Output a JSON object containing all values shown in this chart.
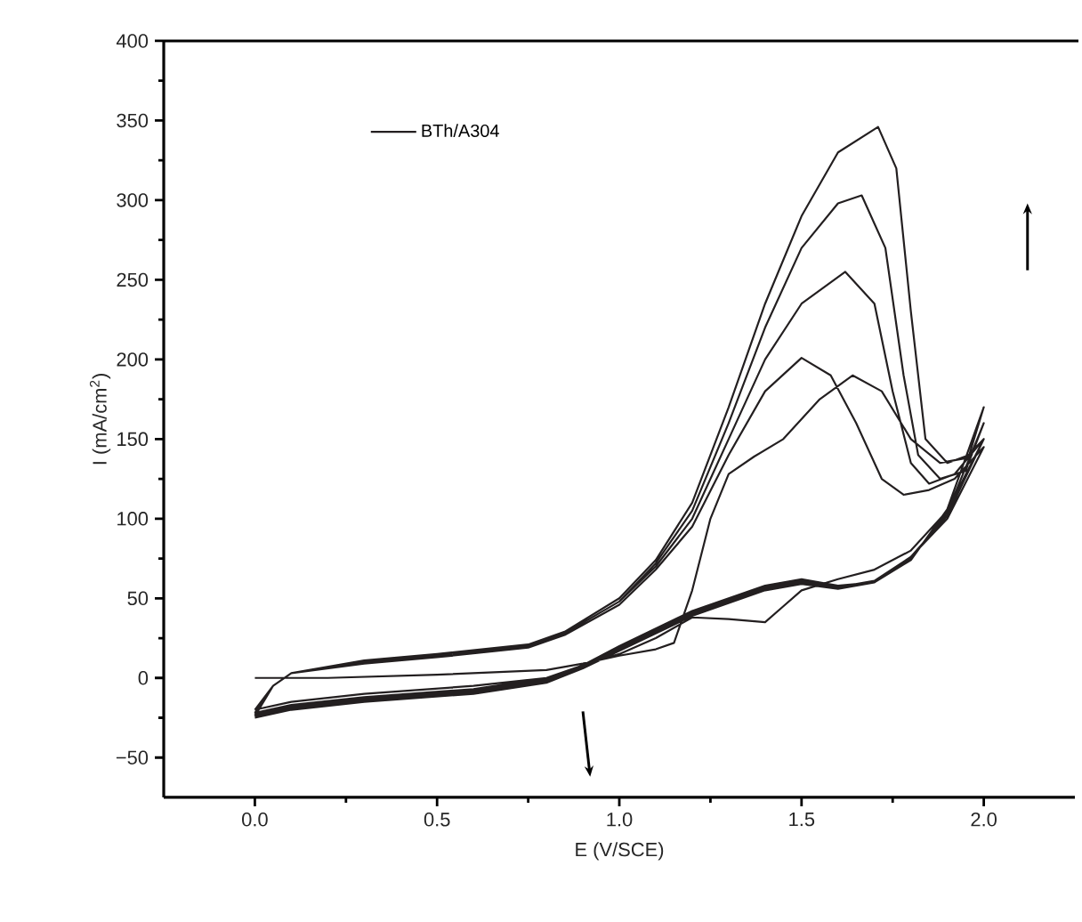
{
  "chart_data": {
    "type": "line",
    "xlabel": "E (V/SCE)",
    "ylabel": "I (mA/cm$^{2}$)",
    "xlim": [
      -0.25,
      2.25
    ],
    "ylim": [
      -75,
      400
    ],
    "xticks": [
      {
        "value": 0,
        "label": "0.0"
      },
      0.5,
      {
        "value": 1,
        "label": "1.0"
      },
      1.5,
      {
        "value": 2,
        "label": "2.0"
      }
    ],
    "yticks": [
      {
        "value": -50,
        "label": "−50"
      },
      0,
      50,
      100,
      150,
      200,
      250,
      300,
      350,
      400
    ],
    "legend": "top left",
    "grid": false,
    "marker": "none",
    "line_style": "solid",
    "series": [
      {
        "name": "BTh/A304",
        "color": "#231f20",
        "x": [
          0,
          0.2,
          0.5,
          0.8,
          0.9,
          1.0,
          1.1,
          1.15,
          1.2,
          1.25,
          1.3,
          1.37,
          1.45,
          1.55,
          1.64,
          1.72,
          1.8,
          1.88,
          1.95,
          2.0,
          1.9,
          1.8,
          1.7,
          1.6,
          1.5,
          1.45,
          1.4,
          1.3,
          1.2,
          1.1,
          1.0,
          0.9,
          0.8,
          0.6,
          0.3,
          0.1,
          0,
          null,
          0,
          0.05,
          0.1,
          0.3,
          0.5,
          0.75,
          0.85,
          1.0,
          1.1,
          1.2,
          1.3,
          1.4,
          1.5,
          1.58,
          1.65,
          1.72,
          1.78,
          1.85,
          1.92,
          2.0,
          1.9,
          1.8,
          1.7,
          1.6,
          1.5,
          1.4,
          1.2,
          1.0,
          0.9,
          0.8,
          0.6,
          0.3,
          0.1,
          0,
          null,
          0,
          0.05,
          0.1,
          0.3,
          0.5,
          0.75,
          0.85,
          1.0,
          1.1,
          1.2,
          1.3,
          1.4,
          1.5,
          1.62,
          1.7,
          1.75,
          1.8,
          1.85,
          1.92,
          2.0,
          1.9,
          1.8,
          1.7,
          1.6,
          1.5,
          1.4,
          1.2,
          1.0,
          0.9,
          0.8,
          0.6,
          0.3,
          0.1,
          0,
          null,
          0,
          0.05,
          0.1,
          0.3,
          0.5,
          0.75,
          0.85,
          1.0,
          1.1,
          1.2,
          1.3,
          1.4,
          1.5,
          1.6,
          1.665,
          1.73,
          1.78,
          1.82,
          1.88,
          1.95,
          2.0,
          1.9,
          1.8,
          1.7,
          1.6,
          1.5,
          1.4,
          1.2,
          1.0,
          0.9,
          0.8,
          0.6,
          0.3,
          0.1,
          0,
          null,
          0,
          0.05,
          0.1,
          0.3,
          0.5,
          0.75,
          0.85,
          1.0,
          1.1,
          1.2,
          1.3,
          1.4,
          1.5,
          1.6,
          1.71,
          1.76,
          1.8,
          1.84,
          1.9,
          1.96,
          2.0,
          1.9,
          1.8,
          1.7,
          1.6,
          1.5,
          1.4,
          1.2,
          1.0,
          0.9,
          0.8,
          0.6,
          0.3,
          0.1,
          0
        ],
        "values": [
          0,
          0,
          2,
          5,
          9,
          14,
          18,
          22,
          55,
          100,
          128,
          139,
          150,
          175,
          190,
          180,
          150,
          135,
          138,
          150,
          105,
          80,
          68,
          62,
          55,
          45,
          35,
          37,
          38,
          25,
          15,
          8,
          0,
          -5,
          -10,
          -15,
          -20,
          null,
          -20,
          -5,
          3,
          9,
          13,
          19,
          27,
          46,
          68,
          95,
          140,
          180,
          201,
          190,
          160,
          125,
          115,
          118,
          125,
          145,
          100,
          76,
          60,
          58,
          62,
          58,
          42,
          20,
          8,
          0,
          -7,
          -12,
          -17,
          -22,
          null,
          -22,
          -5,
          3,
          10,
          14,
          20,
          28,
          48,
          70,
          100,
          150,
          200,
          235,
          255,
          235,
          180,
          135,
          122,
          128,
          150,
          102,
          76,
          61,
          57,
          61,
          57,
          41,
          19,
          8,
          -1,
          -8,
          -13,
          -18,
          -23,
          null,
          -23,
          -5,
          3,
          10,
          14,
          20,
          28,
          48,
          72,
          105,
          160,
          220,
          270,
          298,
          303,
          270,
          190,
          140,
          125,
          130,
          160,
          104,
          75,
          61,
          57,
          60,
          56,
          40,
          18,
          7,
          -2,
          -9,
          -14,
          -19,
          -24,
          null,
          -24,
          -5,
          3,
          11,
          15,
          21,
          29,
          50,
          74,
          110,
          170,
          235,
          290,
          330,
          346,
          320,
          230,
          150,
          135,
          140,
          170,
          106,
          74,
          60,
          56,
          59,
          55,
          39,
          17,
          6,
          -3,
          -10,
          -15,
          -20,
          -25
        ]
      }
    ]
  }
}
